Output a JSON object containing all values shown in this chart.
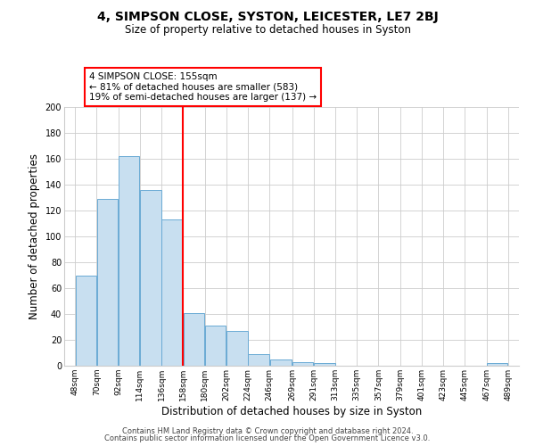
{
  "title": "4, SIMPSON CLOSE, SYSTON, LEICESTER, LE7 2BJ",
  "subtitle": "Size of property relative to detached houses in Syston",
  "xlabel": "Distribution of detached houses by size in Syston",
  "ylabel": "Number of detached properties",
  "bar_left_edges": [
    48,
    70,
    92,
    114,
    136,
    158,
    180,
    202,
    224,
    246,
    269,
    291,
    313,
    335,
    357,
    379,
    401,
    423,
    445,
    467
  ],
  "bar_heights": [
    70,
    129,
    162,
    136,
    113,
    41,
    31,
    27,
    9,
    5,
    3,
    2,
    0,
    0,
    0,
    0,
    0,
    0,
    0,
    2
  ],
  "bar_widths": [
    22,
    22,
    22,
    22,
    22,
    22,
    22,
    22,
    22,
    23,
    22,
    22,
    22,
    22,
    22,
    22,
    22,
    22,
    22,
    22
  ],
  "xtick_labels": [
    "48sqm",
    "70sqm",
    "92sqm",
    "114sqm",
    "136sqm",
    "158sqm",
    "180sqm",
    "202sqm",
    "224sqm",
    "246sqm",
    "269sqm",
    "291sqm",
    "313sqm",
    "335sqm",
    "357sqm",
    "379sqm",
    "401sqm",
    "423sqm",
    "445sqm",
    "467sqm",
    "489sqm"
  ],
  "xtick_positions": [
    48,
    70,
    92,
    114,
    136,
    158,
    180,
    202,
    224,
    246,
    269,
    291,
    313,
    335,
    357,
    379,
    401,
    423,
    445,
    467,
    489
  ],
  "ylim": [
    0,
    200
  ],
  "xlim": [
    37,
    500
  ],
  "bar_color": "#c8dff0",
  "bar_edge_color": "#6aaad4",
  "vline_x": 158,
  "vline_color": "red",
  "annotation_lines": [
    "4 SIMPSON CLOSE: 155sqm",
    "← 81% of detached houses are smaller (583)",
    "19% of semi-detached houses are larger (137) →"
  ],
  "grid_color": "#cccccc",
  "bg_color": "#ffffff",
  "footer1": "Contains HM Land Registry data © Crown copyright and database right 2024.",
  "footer2": "Contains public sector information licensed under the Open Government Licence v3.0."
}
